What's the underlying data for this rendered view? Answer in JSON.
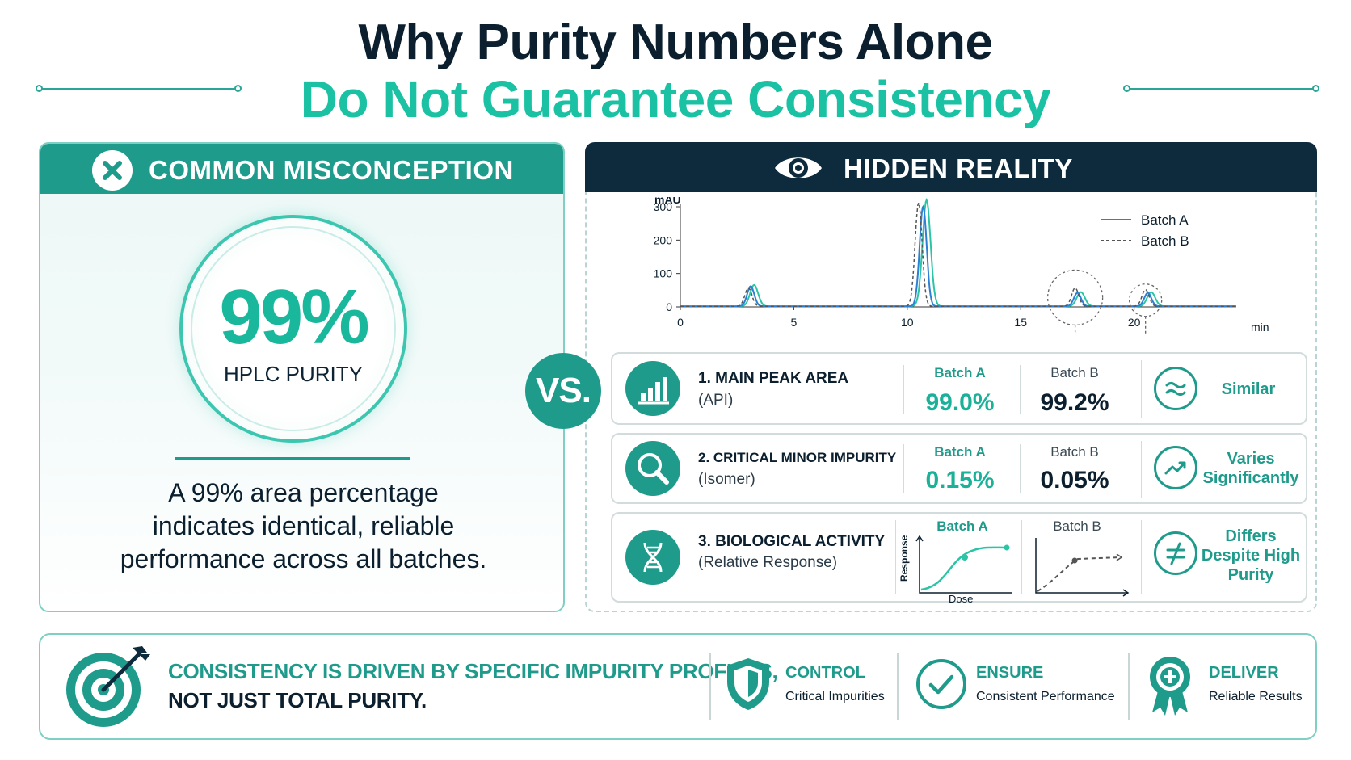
{
  "title": {
    "line1": "Why Purity Numbers Alone",
    "line2": "Do Not Guarantee Consistency"
  },
  "misconception": {
    "header": "COMMON MISCONCEPTION",
    "icon": "x-circle-icon",
    "big_value": "99%",
    "big_label": "HPLC PURITY",
    "statement_l1": "A 99% area percentage",
    "statement_l2": "indicates identical, reliable",
    "statement_l3": "performance across all batches."
  },
  "vs_label": "VS.",
  "reality": {
    "header": "HIDDEN REALITY",
    "icon": "eye-icon"
  },
  "chart_data": {
    "type": "line",
    "ylabel": "mAU",
    "xlabel": "min",
    "yticks": [
      "0",
      "100",
      "200",
      "300"
    ],
    "xticks": [
      "0",
      "5",
      "10",
      "15",
      "20"
    ],
    "xlim": [
      0,
      24.5
    ],
    "ylim": [
      0,
      300
    ],
    "legend": "top-right",
    "series": [
      {
        "name": "Batch A",
        "style": "solid",
        "color": "#2b7fd4",
        "peaks": [
          {
            "x": 3.1,
            "y": 60
          },
          {
            "x": 10.7,
            "y": 300
          },
          {
            "x": 17.5,
            "y": 40
          },
          {
            "x": 20.6,
            "y": 40
          }
        ]
      },
      {
        "name": "Batch B",
        "style": "dashed",
        "color": "#555555",
        "peaks": [
          {
            "x": 3.0,
            "y": 55
          },
          {
            "x": 10.5,
            "y": 310
          },
          {
            "x": 17.4,
            "y": 55
          },
          {
            "x": 20.5,
            "y": 50
          }
        ]
      }
    ],
    "teal_trace_color": "#2cc4a4"
  },
  "rows": [
    {
      "title": "1. MAIN PEAK AREA",
      "sub": "(API)",
      "icon": "bar-chart-icon",
      "a_label": "Batch A",
      "a_value": "99.0%",
      "b_label": "Batch B",
      "b_value": "99.2%",
      "result": "Similar",
      "result_icon": "approx-equal-icon"
    },
    {
      "title": "2. CRITICAL MINOR IMPURITY",
      "sub": "(Isomer)",
      "icon": "magnifier-icon",
      "a_label": "Batch A",
      "a_value": "0.15%",
      "b_label": "Batch B",
      "b_value": "0.05%",
      "result_l1": "Varies",
      "result_l2": "Significantly",
      "result_icon": "trend-up-icon"
    },
    {
      "title": "3. BIOLOGICAL ACTIVITY",
      "sub": "(Relative Response)",
      "icon": "dna-icon",
      "a_label": "Batch A",
      "b_label": "Batch B",
      "mini_ylabel": "Response",
      "mini_xlabel": "Dose",
      "result_l1": "Differs",
      "result_l2": "Despite High",
      "result_l3": "Purity",
      "result_icon": "not-equal-icon"
    }
  ],
  "bottom": {
    "main_l1": "CONSISTENCY IS DRIVEN BY SPECIFIC IMPURITY PROFILES,",
    "main_l2": "NOT JUST TOTAL PURITY.",
    "items": [
      {
        "title": "CONTROL",
        "sub": "Critical Impurities",
        "icon": "shield-icon"
      },
      {
        "title": "ENSURE",
        "sub": "Consistent Performance",
        "icon": "check-circle-icon"
      },
      {
        "title": "DELIVER",
        "sub": "Reliable Results",
        "icon": "award-ribbon-icon"
      }
    ],
    "main_icon": "target-arrow-icon"
  },
  "colors": {
    "teal": "#1f9b8c",
    "bright_teal": "#1bc1a3",
    "navy": "#0e2a3d"
  }
}
